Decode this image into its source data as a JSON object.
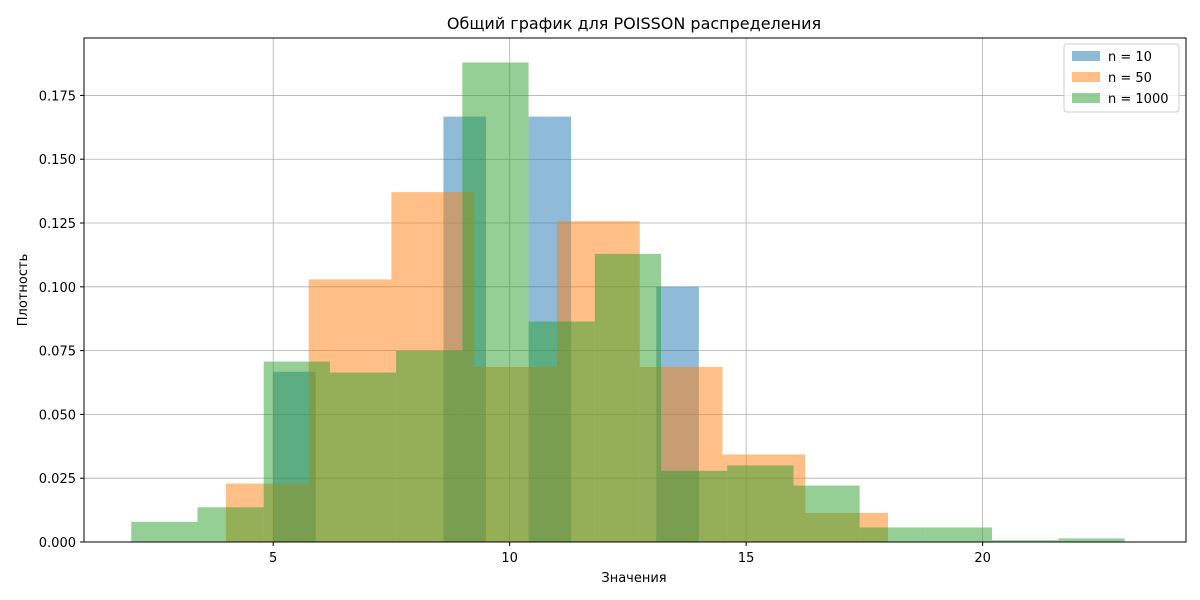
{
  "chart_data": {
    "type": "histogram",
    "title": "Общий график для POISSON распределения",
    "xlabel": "Значения",
    "ylabel": "Плотность",
    "xlim": [
      1,
      24.3
    ],
    "ylim": [
      0,
      0.1975
    ],
    "xticks": [
      5,
      10,
      15,
      20
    ],
    "yticks": [
      0.0,
      0.025,
      0.05,
      0.075,
      0.1,
      0.125,
      0.15,
      0.175
    ],
    "grid": true,
    "legend_position": "upper right",
    "series": [
      {
        "name": "n = 10",
        "color": "#1f77b4",
        "opacity": 0.5,
        "bins": [
          {
            "x0": 5.0,
            "x1": 5.9,
            "y": 0.0667
          },
          {
            "x0": 5.9,
            "x1": 6.8,
            "y": 0.0
          },
          {
            "x0": 6.8,
            "x1": 7.7,
            "y": 0.0
          },
          {
            "x0": 7.7,
            "x1": 8.6,
            "y": 0.0
          },
          {
            "x0": 8.6,
            "x1": 9.5,
            "y": 0.1667
          },
          {
            "x0": 9.5,
            "x1": 10.4,
            "y": 0.0
          },
          {
            "x0": 10.4,
            "x1": 11.3,
            "y": 0.1667
          },
          {
            "x0": 11.3,
            "x1": 12.2,
            "y": 0.0
          },
          {
            "x0": 12.2,
            "x1": 13.1,
            "y": 0.0
          },
          {
            "x0": 13.1,
            "x1": 14.0,
            "y": 0.1
          }
        ]
      },
      {
        "name": "n = 50",
        "color": "#ff7f0e",
        "opacity": 0.5,
        "bins": [
          {
            "x0": 4.0,
            "x1": 5.75,
            "y": 0.0229
          },
          {
            "x0": 5.75,
            "x1": 7.5,
            "y": 0.1029
          },
          {
            "x0": 7.5,
            "x1": 9.25,
            "y": 0.1371
          },
          {
            "x0": 9.25,
            "x1": 11.0,
            "y": 0.0686
          },
          {
            "x0": 11.0,
            "x1": 12.75,
            "y": 0.1257
          },
          {
            "x0": 12.75,
            "x1": 14.5,
            "y": 0.0686
          },
          {
            "x0": 14.5,
            "x1": 16.25,
            "y": 0.0343
          },
          {
            "x0": 16.25,
            "x1": 18.0,
            "y": 0.0114
          }
        ]
      },
      {
        "name": "n = 1000",
        "color": "#2ca02c",
        "opacity": 0.5,
        "bins": [
          {
            "x0": 2.0,
            "x1": 3.4,
            "y": 0.0079
          },
          {
            "x0": 3.4,
            "x1": 4.8,
            "y": 0.0136
          },
          {
            "x0": 4.8,
            "x1": 6.2,
            "y": 0.0707
          },
          {
            "x0": 6.2,
            "x1": 7.6,
            "y": 0.0664
          },
          {
            "x0": 7.6,
            "x1": 9.0,
            "y": 0.075
          },
          {
            "x0": 9.0,
            "x1": 10.4,
            "y": 0.1879
          },
          {
            "x0": 10.4,
            "x1": 11.8,
            "y": 0.0864
          },
          {
            "x0": 11.8,
            "x1": 13.2,
            "y": 0.1129
          },
          {
            "x0": 13.2,
            "x1": 14.6,
            "y": 0.0279
          },
          {
            "x0": 14.6,
            "x1": 16.0,
            "y": 0.03
          },
          {
            "x0": 16.0,
            "x1": 17.4,
            "y": 0.0221
          },
          {
            "x0": 17.4,
            "x1": 18.8,
            "y": 0.0057
          },
          {
            "x0": 18.8,
            "x1": 20.2,
            "y": 0.0057
          },
          {
            "x0": 20.2,
            "x1": 21.6,
            "y": 0.0007
          },
          {
            "x0": 21.6,
            "x1": 23.0,
            "y": 0.0014
          }
        ]
      }
    ]
  }
}
